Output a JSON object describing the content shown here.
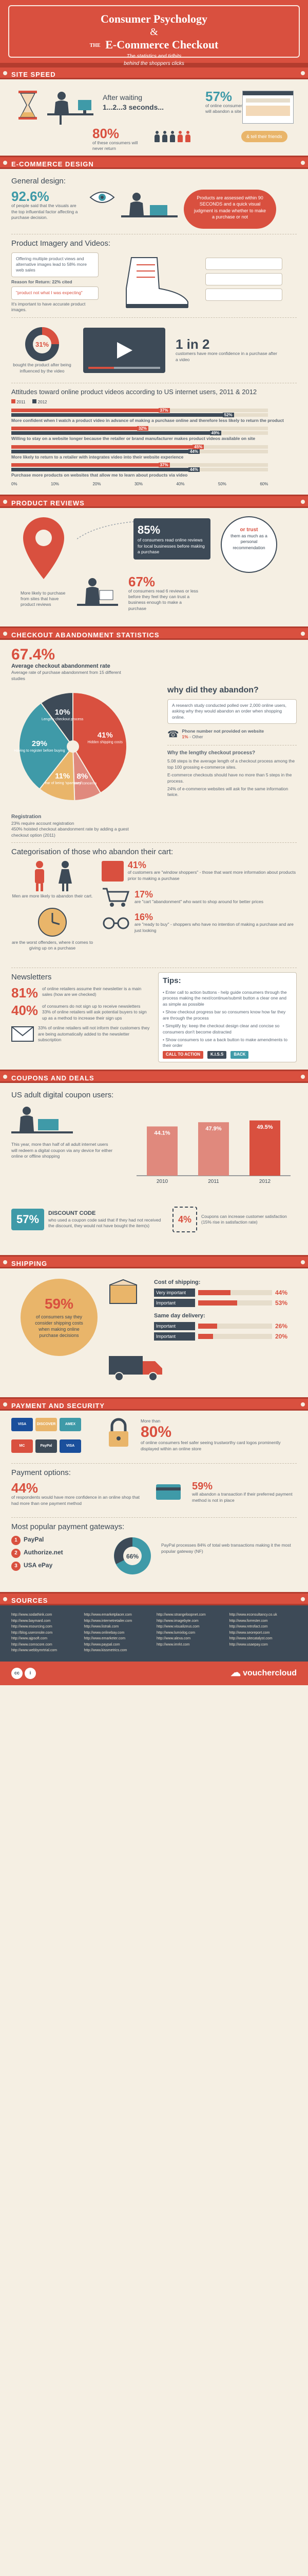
{
  "header": {
    "title_line1": "Consumer Psychology",
    "title_amp": "&",
    "title_line2_the": "THE",
    "title_line2": "E-Commerce Checkout",
    "subtitle_line1": "The statistics and tidbits",
    "subtitle_line2": "behind the shoppers clicks"
  },
  "site_speed": {
    "band": "SITE SPEED",
    "after_waiting": "After waiting",
    "seconds": "1...2...3 seconds...",
    "stat1_value": "57%",
    "stat1_text": "of online consumers will abandon a site",
    "stat2_value": "80%",
    "stat2_text": "of these consumers will never return",
    "stat3_text": "& tell their friends"
  },
  "ecommerce_design": {
    "band": "E-COMMERCE DESIGN",
    "general_title": "General design:",
    "general_value": "92.6%",
    "general_text": "of people said that the visuals are the top influential factor affecting a purchase decision.",
    "assess_text": "Products are assessed within 90 SECONDS and a quick visual judgment is made whether to make a purchase or not",
    "imagery_title": "Product Imagery and Videos:",
    "imagery_text1": "Offering multiple product views and alternative images lead to 58% more web sales",
    "imagery_text2": "Reason for Return: 22% cited",
    "imagery_text3": "\"product not what I was expecting\"",
    "imagery_text4": "It's important to have accurate product images.",
    "pie_value": "31%",
    "pie_text": "bought the product after being influenced by the video",
    "in2_value": "1 in 2",
    "in2_text": "customers have more confidence in a purchase after a video",
    "attitudes_title": "Attitudes toward online product videos according to US internet users, 2011 & 2012",
    "legend_2011": "2011",
    "legend_2012": "2012",
    "bars": [
      {
        "label": "More confident when I watch a product video in advance of making a purchase online and therefore less likely to return the product",
        "v2011": 37,
        "v2012": 52
      },
      {
        "label": "Willing to stay on a website longer because the retailer or brand manufacturer makes product videos available on site",
        "v2011": 32,
        "v2012": 49
      },
      {
        "label": "More likely to return to a retailer with integrates video into their website experience",
        "v2011": 45,
        "v2012": 44
      },
      {
        "label": "Purchase more products on websites that allow me to learn about products via video",
        "v2011": 37,
        "v2012": 44
      }
    ],
    "axis_ticks": [
      "0%",
      "10%",
      "20%",
      "30%",
      "40%",
      "50%",
      "60%"
    ]
  },
  "product_reviews": {
    "band": "PRODUCT REVIEWS",
    "stat1_value": "85%",
    "stat1_text": "of consumers read online reviews for local businesses before making a purchase",
    "or_trust": "or trust",
    "stat2_text": "them as much as a personal recommendation",
    "stat3_value": "67%",
    "stat3_text": "of consumers read 6 reviews or less before they feel they can trust a business enough to make a purchase",
    "stat4_text": "More likely to purchase from sites that have product reviews"
  },
  "checkout_abandonment": {
    "band": "CHECKOUT ABANDONMENT STATISTICS",
    "rate_value": "67.4%",
    "rate_label": "Average checkout abandonment rate",
    "rate_text": "Average rate of purchase abandonment from 15 different studies",
    "why_title": "why did they abandon?",
    "why_text": "A research study conducted polled over 2,000 online users, asking why they would abandon an order when shopping online.",
    "phone_text": "Phone number not provided on website",
    "phone_value": "1%",
    "phone_other": "Other",
    "slices": [
      {
        "label": "Hidden shipping costs",
        "value": "41%"
      },
      {
        "label": "Delivery concerns",
        "value": "8%"
      },
      {
        "label": "Fear of being 'spammed'",
        "value": "11%"
      },
      {
        "label": "Having to register before buying",
        "value": "29%"
      },
      {
        "label": "Lengthy checkout process",
        "value": "10%"
      }
    ],
    "registration_title": "Registration",
    "registration_text1": "23% require account registration",
    "registration_text2": "450% hoisted checkout abandonment rate by adding a guest checkout option (2011)",
    "ideal_title": "Why the lengthy checkout process?",
    "ideal_text1": "5.08 steps is the average length of a checkout process among the top 100 grossing e-commerce sites.",
    "ideal_text2": "E-commerce checkouts should have no more than 5 steps in the process.",
    "ideal_text3": "24% of e-commerce websites will ask for the same information twice."
  },
  "categorisation": {
    "title": "Categorisation of those who abandon their cart:",
    "men_text": "Men are more likely to abandon their cart.",
    "window_value": "41%",
    "window_text": "of customers are \"window shoppers\" - those that want more information about products prior to making a purchase",
    "save_value": "17%",
    "save_text": "are \"cart \"abandonment\" who want to shop around for better prices",
    "buy_value": "16%",
    "buy_text": "are \"ready to buy\" - shoppers who have no intention of making a purchase and are just looking",
    "time_text": "are the worst offenders, where it comes to giving up on a purchase"
  },
  "newsletters": {
    "title": "Newsletters",
    "stat1_value": "81%",
    "stat1_text": "of online retailers assume their newsletter is a main sales (how are we checked)",
    "stat2_value": "40%",
    "stat2_text": "of consumers do not sign up to receive newsletters",
    "stat2_text2": "33% of online retailers will ask potential buyers to sign up as a method to increase their sign ups",
    "stat3_text": "33% of online retailers will not inform their customers they are being automatically added to the newsletter subscription",
    "tips_title": "Tips:",
    "tips": [
      "Enter call to action buttons - help guide consumers through the process making the next/continue/submit button a clear one and as simple as possible",
      "Show checkout progress bar so consumers know how far they are through the process",
      "Simplify by: keep the checkout design clear and concise so consumers don't become distracted",
      "Show consumers to use a back button to make amendments to their order"
    ],
    "cta_label": "CALL TO ACTION",
    "kiss_label": "K.I.S.S",
    "back_label": "BACK"
  },
  "coupons": {
    "band": "COUPONS AND DEALS",
    "title": "US adult digital coupon users:",
    "year_text": "This year, more than half of all adult internet users will redeem a digital coupon via any device for either online or offline shopping",
    "chart_data": {
      "type": "bar",
      "categories": [
        "2010",
        "2011",
        "2012"
      ],
      "values": [
        44.1,
        47.9,
        49.5
      ],
      "title": "US adult digital coupon users",
      "xlabel": "",
      "ylabel": "",
      "ylim": [
        0,
        60
      ]
    },
    "chart_labels": [
      "44.1%",
      "47.9%",
      "49.5%"
    ],
    "discount_value": "57%",
    "discount_label": "DISCOUNT CODE",
    "discount_text": "who used a coupon code said that if they had not received the discount, they would not have bought the item(s)",
    "coupon_value": "4%",
    "coupon_text": "Coupons can increase customer satisfaction (15% rise in satisfaction rate)"
  },
  "shipping": {
    "band": "SHIPPING",
    "free_value": "59%",
    "free_text": "of consumers say they consider shipping costs when making online purchase decisions",
    "cost_title": "Cost of shipping:",
    "cost_rows": [
      {
        "label": "Very important",
        "value": "44%"
      },
      {
        "label": "Important",
        "value": "53%"
      }
    ],
    "sameday_title": "Same day delivery:",
    "sameday_rows": [
      {
        "label": "Important",
        "value": "26%"
      },
      {
        "label": "Important",
        "value": "20%"
      }
    ]
  },
  "payment": {
    "band": "PAYMENT AND SECURITY",
    "cards": [
      "VISA",
      "DISCOVER",
      "AMEX",
      "MC",
      "PayPal",
      "VISA"
    ],
    "security_prefix": "More than",
    "security_value": "80%",
    "security_text": "of online consumers feel safer seeing trustworthy card logos prominently displayed within an online store",
    "options_title": "Payment options:",
    "options_value": "44%",
    "options_text": "of respondents would have more confidence in an online shop that had more than one payment method",
    "abandon_value": "59%",
    "abandon_text": "will abandon a transaction if their preferred payment method is not in place",
    "gateways_title": "Most popular payment gateways:",
    "gateways": [
      "PayPal",
      "Authorize.net",
      "USA ePay"
    ],
    "paypal_value": "66%",
    "paypal_text": "PayPal processes 84% of total web transactions making it the most popular gateway (NF)"
  },
  "sources": {
    "band": "SOURCES",
    "col1": [
      "http://www.sodathink.com",
      "http://www.baymard.com",
      "http://www.esourcing.com",
      "http://blog.useronsite.com",
      "http://www.ajpsoft.com",
      "http://www.comscore.com",
      "http://www.webbymrtrial.com"
    ],
    "col2": [
      "http://www.emarketplacer.com",
      "http://www.internetretailer.com",
      "http://www.listrak.com",
      "http://www.onlinebay.com",
      "http://www.emarketer.com",
      "http://www.paypal.com",
      "http://www.kissmetrics.com"
    ],
    "col3": [
      "http://www.strangeloopnet.com",
      "http://www.imagebyte.com",
      "http://www.visualizeus.com",
      "http://www.lumixlog.com",
      "http://www.alexa.com",
      "http://www.imrkt.com"
    ],
    "col4": [
      "http://www.econsultancy.co.uk",
      "http://www.forrester.com",
      "http://www.retrofact.com",
      "http://www.seoreport.com",
      "http://www.sitecatalyst.com",
      "http://www.usaepay.com"
    ],
    "brand": "vouchercloud"
  }
}
